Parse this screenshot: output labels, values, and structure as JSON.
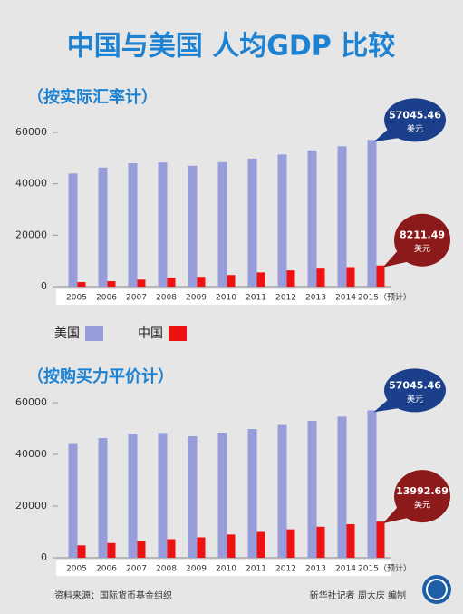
{
  "title": "中国与美国 人均GDP 比较",
  "chart_data": [
    {
      "type": "bar",
      "subtitle": "（按实际汇率计）",
      "categories": [
        "2005",
        "2006",
        "2007",
        "2008",
        "2009",
        "2010",
        "2011",
        "2012",
        "2013",
        "2014",
        "2015（预计）"
      ],
      "series": [
        {
          "name": "美国",
          "color": "#979dda",
          "values": [
            44000,
            46300,
            48000,
            48300,
            47000,
            48400,
            49800,
            51400,
            53000,
            54600,
            57045.46
          ]
        },
        {
          "name": "中国",
          "color": "#ee1111",
          "values": [
            1750,
            2100,
            2700,
            3450,
            3800,
            4500,
            5500,
            6300,
            7000,
            7600,
            8211.49
          ]
        }
      ],
      "value_unit": "美元",
      "ylim": [
        0,
        60000
      ],
      "yticks": [
        0,
        20000,
        40000,
        60000
      ]
    },
    {
      "type": "bar",
      "subtitle": "（按购买力平价计）",
      "categories": [
        "2005",
        "2006",
        "2007",
        "2008",
        "2009",
        "2010",
        "2011",
        "2012",
        "2013",
        "2014",
        "2015（预计）"
      ],
      "series": [
        {
          "color": "#979dda",
          "values": [
            44000,
            46300,
            48000,
            48300,
            47000,
            48400,
            49800,
            51400,
            53000,
            54600,
            57045.46
          ]
        },
        {
          "color": "#ee1111",
          "values": [
            4800,
            5700,
            6500,
            7200,
            7900,
            9000,
            10000,
            11000,
            12000,
            13000,
            13992.69
          ]
        }
      ],
      "value_unit": "美元",
      "ylim": [
        0,
        60000
      ],
      "yticks": [
        0,
        20000,
        40000,
        60000
      ]
    }
  ],
  "source": "资料来源：国际货币基金组织",
  "credit": "新华社记者 周大庆 编制"
}
